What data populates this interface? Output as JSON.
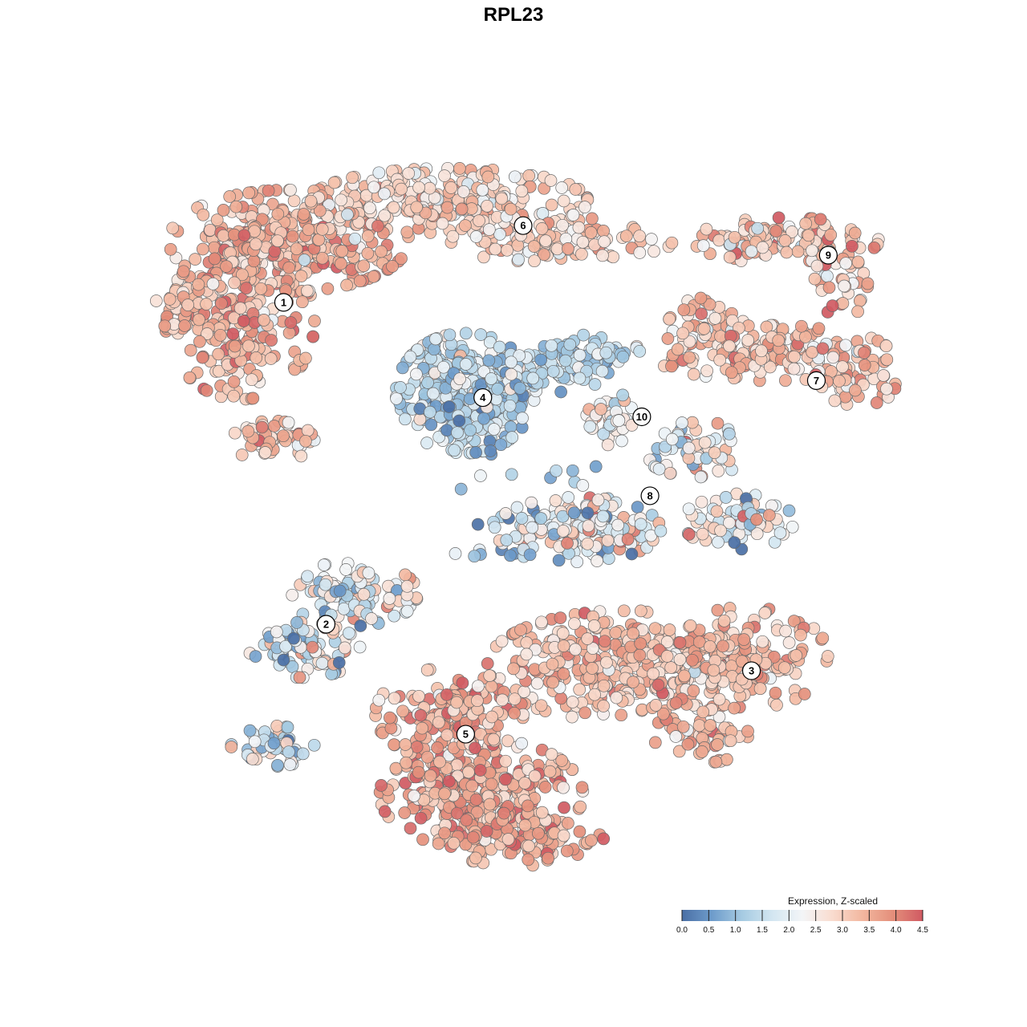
{
  "chart_data": {
    "type": "scatter",
    "title": "RPL23",
    "xlabel": "",
    "ylabel": "",
    "xlim": [
      0,
      100
    ],
    "ylim": [
      0,
      100
    ],
    "grid": false,
    "colorbar": {
      "title": "Expression, Z-scaled",
      "min": 0.0,
      "max": 4.5,
      "ticks": [
        "0.0",
        "0.5",
        "1.0",
        "1.5",
        "2.0",
        "2.5",
        "3.0",
        "3.5",
        "4.0",
        "4.5"
      ],
      "tick_values": [
        0,
        0.5,
        1.0,
        1.5,
        2.0,
        2.5,
        3.0,
        3.5,
        4.0,
        4.5
      ],
      "colors": [
        "#4a6fa5",
        "#6e9ccb",
        "#a6cbe2",
        "#d3e6f1",
        "#f3f5f7",
        "#f9dccf",
        "#f2b79f",
        "#e48f7b",
        "#d05a62"
      ],
      "placement": "bottom-right"
    },
    "clusters": [
      {
        "label": "1",
        "x": 16.5,
        "y": 78.6,
        "mean": 3.4,
        "spread": 0.6
      },
      {
        "label": "2",
        "x": 22.2,
        "y": 35.0,
        "mean": 1.9,
        "spread": 0.9
      },
      {
        "label": "3",
        "x": 79.2,
        "y": 28.7,
        "mean": 3.3,
        "spread": 0.5
      },
      {
        "label": "4",
        "x": 43.2,
        "y": 65.7,
        "mean": 1.4,
        "spread": 0.6
      },
      {
        "label": "5",
        "x": 40.9,
        "y": 20.1,
        "mean": 3.5,
        "spread": 0.6
      },
      {
        "label": "6",
        "x": 48.6,
        "y": 89.0,
        "mean": 3.0,
        "spread": 0.5
      },
      {
        "label": "7",
        "x": 87.9,
        "y": 68.0,
        "mean": 3.2,
        "spread": 0.6
      },
      {
        "label": "8",
        "x": 65.6,
        "y": 52.4,
        "mean": 2.2,
        "spread": 0.9
      },
      {
        "label": "9",
        "x": 89.5,
        "y": 85.0,
        "mean": 3.1,
        "spread": 0.7
      },
      {
        "label": "10",
        "x": 64.5,
        "y": 63.1,
        "mean": 2.5,
        "spread": 0.6
      }
    ]
  }
}
